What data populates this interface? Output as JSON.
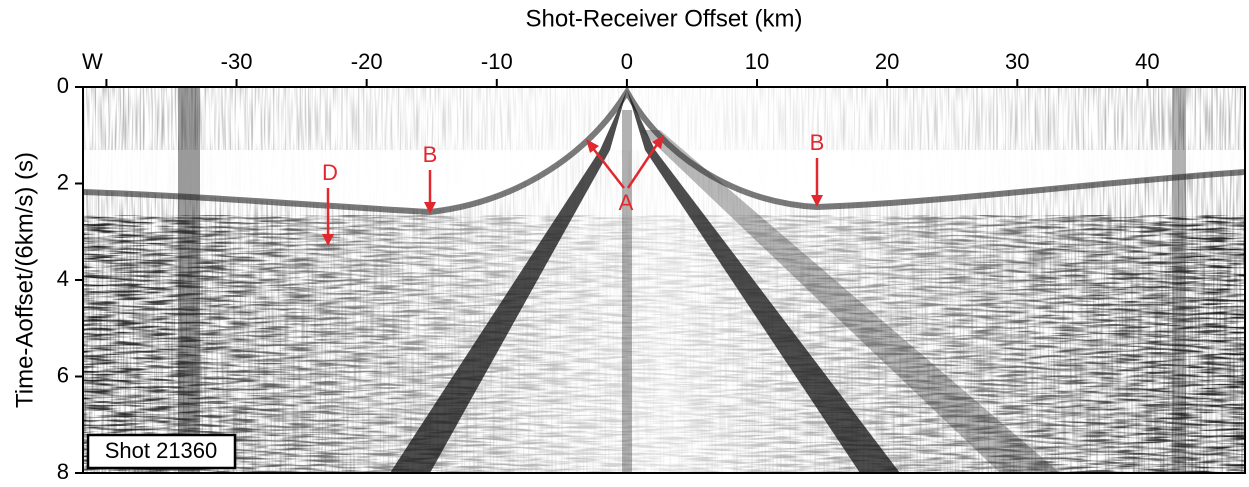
{
  "chart_data": {
    "type": "seismic",
    "title": "Shot-Receiver Offset (km)",
    "y_label": "Time-Aoffset/(6km/s) (s)",
    "box_label": "Shot 21360",
    "annotations": [
      "D",
      "B",
      "A",
      "B"
    ],
    "xlim": [
      -41.8,
      47.5
    ],
    "xticks": [
      {
        "value": -40,
        "label": "W"
      },
      -30,
      -20,
      -10,
      0,
      10,
      20,
      30,
      40
    ],
    "ylim": [
      0,
      8
    ],
    "yticks": [
      0,
      2,
      4,
      6,
      8
    ],
    "y_inverted": true,
    "grid": false,
    "color": "#000000"
  }
}
